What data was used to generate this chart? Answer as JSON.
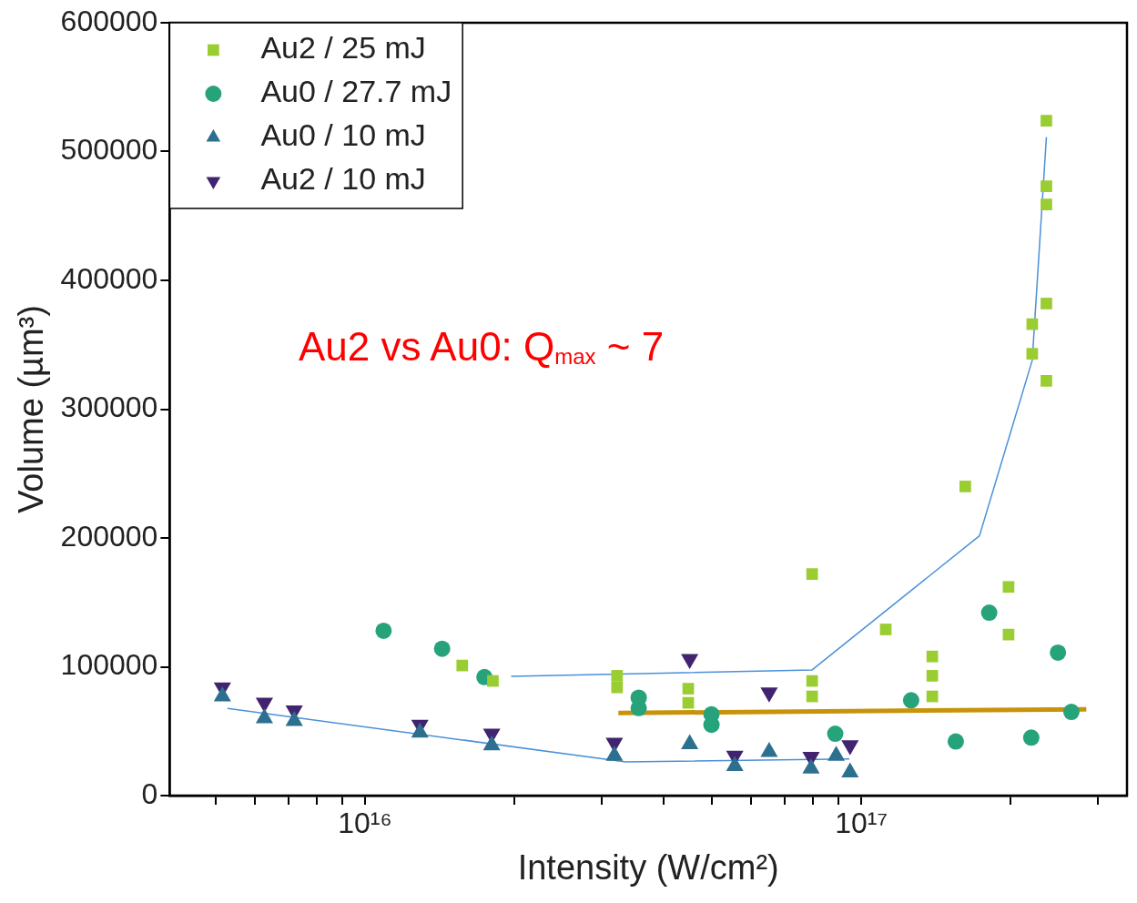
{
  "chart_data": {
    "type": "scatter",
    "xlabel": "Intensity (W/cm²)",
    "ylabel": "Volume (µm³)",
    "log": "x",
    "grid": false,
    "legend": "top left",
    "xlim": [
      4040000000000000.0,
      3.43e+17
    ],
    "xticks": [
      {
        "value": 5000000000000000.0,
        "label": null
      },
      {
        "value": 6000000000000000.0,
        "label": null
      },
      {
        "value": 7000000000000000.0,
        "label": null
      },
      {
        "value": 8000000000000000.0,
        "label": null
      },
      {
        "value": 9000000000000000.0,
        "label": null
      },
      {
        "value": 1e+16,
        "label": "10¹⁶"
      },
      {
        "value": 2e+16,
        "label": null
      },
      {
        "value": 3e+16,
        "label": null
      },
      {
        "value": 4e+16,
        "label": null
      },
      {
        "value": 5e+16,
        "label": null
      },
      {
        "value": 6e+16,
        "label": null
      },
      {
        "value": 7e+16,
        "label": null
      },
      {
        "value": 8e+16,
        "label": null
      },
      {
        "value": 9e+16,
        "label": null
      },
      {
        "value": 1e+17,
        "label": "10¹⁷"
      },
      {
        "value": 2e+17,
        "label": null
      },
      {
        "value": 3e+17,
        "label": null
      }
    ],
    "ylim": [
      0,
      600000
    ],
    "yticks": [
      0,
      100000,
      200000,
      300000,
      400000,
      500000,
      600000
    ],
    "annotations": [
      "Au2 vs Au0:  Q$_{max}$ ~ 7"
    ],
    "series": [
      {
        "name": "Au2 / 25 mJ",
        "color": "#9acd32",
        "marker": "square",
        "x": [
          1.57e+16,
          1.81e+16,
          3.22e+16,
          3.22e+16,
          4.48e+16,
          4.48e+16,
          7.96e+16,
          7.96e+16,
          7.96e+16,
          1.12e+17,
          1.39e+17,
          1.39e+17,
          1.39e+17,
          1.62e+17,
          1.98e+17,
          1.98e+17,
          2.21e+17,
          2.21e+17,
          2.36e+17,
          2.36e+17,
          2.36e+17,
          2.36e+17,
          2.36e+17
        ],
        "values": [
          101000,
          89000,
          93000,
          84000,
          83000,
          72000,
          172000,
          89000,
          77000,
          129000,
          108000,
          93000,
          77000,
          240000,
          162000,
          125000,
          366000,
          343000,
          524000,
          473000,
          459000,
          382000,
          322000
        ]
      },
      {
        "name": "Au0 / 27.7 mJ",
        "color": "#27a37c",
        "marker": "circle",
        "x": [
          1.09e+16,
          1.43e+16,
          1.74e+16,
          3.56e+16,
          3.56e+16,
          4.99e+16,
          4.99e+16,
          8.86e+16,
          1.26e+17,
          1.55e+17,
          1.81e+17,
          2.2e+17,
          2.49e+17,
          2.65e+17
        ],
        "values": [
          128000,
          114000,
          92000,
          76000,
          68000,
          63000,
          55000,
          48000,
          74000,
          42000,
          142000,
          45000,
          111000,
          65000
        ]
      },
      {
        "name": "Au0 / 10 mJ",
        "color": "#2d6f8e",
        "marker": "triangle",
        "x": [
          5160000000000000.0,
          6270000000000000.0,
          7200000000000000.0,
          1.29e+16,
          1.8e+16,
          3.18e+16,
          4.51e+16,
          5.56e+16,
          6.52e+16,
          7.92e+16,
          8.9e+16,
          9.49e+16
        ],
        "values": [
          77000,
          60000,
          58000,
          49000,
          39000,
          31000,
          40000,
          23000,
          34000,
          21000,
          31000,
          18000
        ]
      },
      {
        "name": "Au2 / 10 mJ",
        "color": "#41236f",
        "marker": "triangle-down",
        "x": [
          5160000000000000.0,
          6270000000000000.0,
          7200000000000000.0,
          1.29e+16,
          1.8e+16,
          3.18e+16,
          4.51e+16,
          5.56e+16,
          6.52e+16,
          7.92e+16,
          9.49e+16
        ],
        "values": [
          84000,
          72000,
          66000,
          55000,
          48000,
          41000,
          106000,
          31000,
          80000,
          30000,
          39000
        ]
      },
      {
        "type": "line",
        "color": "#4a90d9",
        "marker": "none",
        "x": [
          1.97e+16,
          7.96e+16,
          1.73e+17,
          2.21e+17,
          2.36e+17
        ],
        "values": [
          92500,
          97600,
          201700,
          337900,
          511200
        ]
      },
      {
        "type": "line",
        "color": "#4a90d9",
        "marker": "none",
        "x": [
          5280000000000000.0,
          3.35e+16,
          9.46e+16
        ],
        "values": [
          67700,
          26200,
          28400
        ]
      },
      {
        "type": "line",
        "color": "#c8930a",
        "marker": "none",
        "x": [
          3.24e+16,
          2.84e+17
        ],
        "values": [
          64100,
          67000
        ]
      }
    ]
  }
}
